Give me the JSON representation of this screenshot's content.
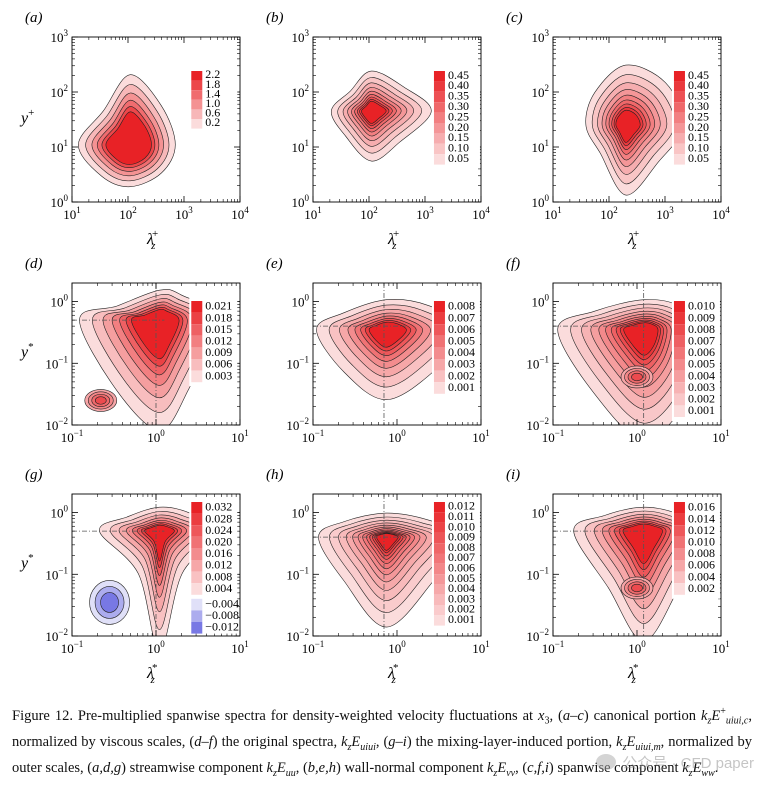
{
  "chart_data": [
    {
      "panel": "(a)",
      "type": "contour",
      "xscale": "log",
      "yscale": "log",
      "xlim": [
        10,
        10000
      ],
      "ylim": [
        1,
        1000
      ],
      "xticks": [
        {
          "v": 10,
          "b": "10",
          "e": "1"
        },
        {
          "v": 100,
          "b": "10",
          "e": "2"
        },
        {
          "v": 1000,
          "b": "10",
          "e": "3"
        },
        {
          "v": 10000,
          "b": "10",
          "e": "4"
        }
      ],
      "yticks": [
        {
          "v": 1,
          "b": "10",
          "e": "0"
        },
        {
          "v": 10,
          "b": "10",
          "e": "1"
        },
        {
          "v": 100,
          "b": "10",
          "e": "2"
        },
        {
          "v": 1000,
          "b": "10",
          "e": "3"
        }
      ],
      "ylabel": "y",
      "ylabel_sup": "+",
      "xlabel": "λ",
      "xlabel_sub": "z",
      "xlabel_sup": "+",
      "levels": [
        0.2,
        0.6,
        1.0,
        1.4,
        1.8,
        2.2
      ],
      "colorbar_labels": [
        "2.2",
        "1.8",
        "1.4",
        "1.0",
        "0.6",
        "0.2"
      ],
      "peak": {
        "x": 110,
        "y": 11
      },
      "guides": []
    },
    {
      "panel": "(b)",
      "type": "contour",
      "xscale": "log",
      "yscale": "log",
      "xlim": [
        10,
        10000
      ],
      "ylim": [
        1,
        1000
      ],
      "xticks": [
        {
          "v": 10,
          "b": "10",
          "e": "1"
        },
        {
          "v": 100,
          "b": "10",
          "e": "2"
        },
        {
          "v": 1000,
          "b": "10",
          "e": "3"
        },
        {
          "v": 10000,
          "b": "10",
          "e": "4"
        }
      ],
      "yticks": [
        {
          "v": 1,
          "b": "10",
          "e": "0"
        },
        {
          "v": 10,
          "b": "10",
          "e": "1"
        },
        {
          "v": 100,
          "b": "10",
          "e": "2"
        },
        {
          "v": 1000,
          "b": "10",
          "e": "3"
        }
      ],
      "ylabel": "",
      "ylabel_sup": "",
      "xlabel": "λ",
      "xlabel_sub": "z",
      "xlabel_sup": "+",
      "levels": [
        0.05,
        0.1,
        0.15,
        0.2,
        0.25,
        0.3,
        0.35,
        0.4,
        0.45
      ],
      "colorbar_labels": [
        "0.45",
        "0.40",
        "0.35",
        "0.30",
        "0.25",
        "0.20",
        "0.15",
        "0.10",
        "0.05"
      ],
      "peak": {
        "x": 110,
        "y": 45
      },
      "guides": []
    },
    {
      "panel": "(c)",
      "type": "contour",
      "xscale": "log",
      "yscale": "log",
      "xlim": [
        10,
        10000
      ],
      "ylim": [
        1,
        1000
      ],
      "xticks": [
        {
          "v": 10,
          "b": "10",
          "e": "1"
        },
        {
          "v": 100,
          "b": "10",
          "e": "2"
        },
        {
          "v": 1000,
          "b": "10",
          "e": "3"
        },
        {
          "v": 10000,
          "b": "10",
          "e": "4"
        }
      ],
      "yticks": [
        {
          "v": 1,
          "b": "10",
          "e": "0"
        },
        {
          "v": 10,
          "b": "10",
          "e": "1"
        },
        {
          "v": 100,
          "b": "10",
          "e": "2"
        },
        {
          "v": 1000,
          "b": "10",
          "e": "3"
        }
      ],
      "ylabel": "",
      "ylabel_sup": "",
      "xlabel": "λ",
      "xlabel_sub": "z",
      "xlabel_sup": "+",
      "levels": [
        0.05,
        0.1,
        0.15,
        0.2,
        0.25,
        0.3,
        0.35,
        0.4,
        0.45
      ],
      "colorbar_labels": [
        "0.45",
        "0.40",
        "0.35",
        "0.30",
        "0.25",
        "0.20",
        "0.15",
        "0.10",
        "0.05"
      ],
      "peak": {
        "x": 200,
        "y": 25
      },
      "guides": []
    },
    {
      "panel": "(d)",
      "type": "contour",
      "xscale": "log",
      "yscale": "log",
      "xlim": [
        0.1,
        10
      ],
      "ylim": [
        0.01,
        2
      ],
      "xticks": [
        {
          "v": 0.1,
          "b": "10",
          "e": "−1"
        },
        {
          "v": 1,
          "b": "10",
          "e": "0"
        },
        {
          "v": 10,
          "b": "10",
          "e": "1"
        }
      ],
      "yticks": [
        {
          "v": 0.01,
          "b": "10",
          "e": "−2"
        },
        {
          "v": 0.1,
          "b": "10",
          "e": "−1"
        },
        {
          "v": 1,
          "b": "10",
          "e": "0"
        }
      ],
      "ylabel": "y",
      "ylabel_sup": "*",
      "xlabel": "",
      "xlabel_sub": "",
      "xlabel_sup": "",
      "levels": [
        0.003,
        0.006,
        0.009,
        0.012,
        0.015,
        0.018,
        0.021
      ],
      "colorbar_labels": [
        "0.021",
        "0.018",
        "0.015",
        "0.012",
        "0.009",
        "0.006",
        "0.003"
      ],
      "peak": {
        "x": 1.1,
        "y": 0.5
      },
      "secondary": {
        "x": 0.22,
        "y": 0.025
      },
      "guides": [
        1,
        0.5
      ]
    },
    {
      "panel": "(e)",
      "type": "contour",
      "xscale": "log",
      "yscale": "log",
      "xlim": [
        0.1,
        10
      ],
      "ylim": [
        0.01,
        2
      ],
      "xticks": [
        {
          "v": 0.1,
          "b": "10",
          "e": "−1"
        },
        {
          "v": 1,
          "b": "10",
          "e": "0"
        },
        {
          "v": 10,
          "b": "10",
          "e": "1"
        }
      ],
      "yticks": [
        {
          "v": 0.01,
          "b": "10",
          "e": "−2"
        },
        {
          "v": 0.1,
          "b": "10",
          "e": "−1"
        },
        {
          "v": 1,
          "b": "10",
          "e": "0"
        }
      ],
      "ylabel": "",
      "ylabel_sup": "",
      "xlabel": "",
      "xlabel_sub": "",
      "xlabel_sup": "",
      "levels": [
        0.001,
        0.002,
        0.003,
        0.004,
        0.005,
        0.006,
        0.007,
        0.008
      ],
      "colorbar_labels": [
        "0.008",
        "0.007",
        "0.006",
        "0.005",
        "0.004",
        "0.003",
        "0.002",
        "0.001"
      ],
      "peak": {
        "x": 0.75,
        "y": 0.35
      },
      "guides": [
        0.7,
        0.4
      ]
    },
    {
      "panel": "(f)",
      "type": "contour",
      "xscale": "log",
      "yscale": "log",
      "xlim": [
        0.1,
        10
      ],
      "ylim": [
        0.01,
        2
      ],
      "xticks": [
        {
          "v": 0.1,
          "b": "10",
          "e": "−1"
        },
        {
          "v": 1,
          "b": "10",
          "e": "0"
        },
        {
          "v": 10,
          "b": "10",
          "e": "1"
        }
      ],
      "yticks": [
        {
          "v": 0.01,
          "b": "10",
          "e": "−2"
        },
        {
          "v": 0.1,
          "b": "10",
          "e": "−1"
        },
        {
          "v": 1,
          "b": "10",
          "e": "0"
        }
      ],
      "ylabel": "",
      "ylabel_sup": "",
      "xlabel": "",
      "xlabel_sub": "",
      "xlabel_sup": "",
      "levels": [
        0.001,
        0.002,
        0.003,
        0.004,
        0.005,
        0.006,
        0.007,
        0.008,
        0.009,
        0.01
      ],
      "colorbar_labels": [
        "0.010",
        "0.009",
        "0.008",
        "0.007",
        "0.006",
        "0.005",
        "0.004",
        "0.003",
        "0.002",
        "0.001"
      ],
      "peak": {
        "x": 1.2,
        "y": 0.35
      },
      "secondary": {
        "x": 1.0,
        "y": 0.06
      },
      "guides": [
        1.2,
        0.4
      ]
    },
    {
      "panel": "(g)",
      "type": "contour",
      "xscale": "log",
      "yscale": "log",
      "xlim": [
        0.1,
        10
      ],
      "ylim": [
        0.01,
        2
      ],
      "xticks": [
        {
          "v": 0.1,
          "b": "10",
          "e": "−1"
        },
        {
          "v": 1,
          "b": "10",
          "e": "0"
        },
        {
          "v": 10,
          "b": "10",
          "e": "1"
        }
      ],
      "yticks": [
        {
          "v": 0.01,
          "b": "10",
          "e": "−2"
        },
        {
          "v": 0.1,
          "b": "10",
          "e": "−1"
        },
        {
          "v": 1,
          "b": "10",
          "e": "0"
        }
      ],
      "ylabel": "y",
      "ylabel_sup": "*",
      "xlabel": "λ",
      "xlabel_sub": "z",
      "xlabel_sup": "*",
      "levels": [
        0.004,
        0.008,
        0.012,
        0.016,
        0.02,
        0.024,
        0.028,
        0.032
      ],
      "negative_levels": [
        -0.004,
        -0.008,
        -0.012
      ],
      "colorbar_labels": [
        "0.032",
        "0.028",
        "0.024",
        "0.020",
        "0.016",
        "0.012",
        "0.008",
        "0.004"
      ],
      "colorbar_neg_labels": [
        "−0.004",
        "−0.008",
        "−0.012"
      ],
      "peak": {
        "x": 1.1,
        "y": 0.5
      },
      "negative_peak": {
        "x": 0.28,
        "y": 0.035
      },
      "guides": [
        1,
        0.5
      ]
    },
    {
      "panel": "(h)",
      "type": "contour",
      "xscale": "log",
      "yscale": "log",
      "xlim": [
        0.1,
        10
      ],
      "ylim": [
        0.01,
        2
      ],
      "xticks": [
        {
          "v": 0.1,
          "b": "10",
          "e": "−1"
        },
        {
          "v": 1,
          "b": "10",
          "e": "0"
        },
        {
          "v": 10,
          "b": "10",
          "e": "1"
        }
      ],
      "yticks": [
        {
          "v": 0.01,
          "b": "10",
          "e": "−2"
        },
        {
          "v": 0.1,
          "b": "10",
          "e": "−1"
        },
        {
          "v": 1,
          "b": "10",
          "e": "0"
        }
      ],
      "ylabel": "",
      "ylabel_sup": "",
      "xlabel": "λ",
      "xlabel_sub": "z",
      "xlabel_sup": "*",
      "levels": [
        0.001,
        0.002,
        0.003,
        0.004,
        0.005,
        0.006,
        0.007,
        0.008,
        0.009,
        0.01,
        0.011,
        0.012
      ],
      "colorbar_labels": [
        "0.012",
        "0.011",
        "0.010",
        "0.009",
        "0.008",
        "0.007",
        "0.006",
        "0.005",
        "0.004",
        "0.003",
        "0.002",
        "0.001"
      ],
      "peak": {
        "x": 0.75,
        "y": 0.4
      },
      "guides": [
        0.7,
        0.4
      ]
    },
    {
      "panel": "(i)",
      "type": "contour",
      "xscale": "log",
      "yscale": "log",
      "xlim": [
        0.1,
        10
      ],
      "ylim": [
        0.01,
        2
      ],
      "xticks": [
        {
          "v": 0.1,
          "b": "10",
          "e": "−1"
        },
        {
          "v": 1,
          "b": "10",
          "e": "0"
        },
        {
          "v": 10,
          "b": "10",
          "e": "1"
        }
      ],
      "yticks": [
        {
          "v": 0.01,
          "b": "10",
          "e": "−2"
        },
        {
          "v": 0.1,
          "b": "10",
          "e": "−1"
        },
        {
          "v": 1,
          "b": "10",
          "e": "0"
        }
      ],
      "ylabel": "",
      "ylabel_sup": "",
      "xlabel": "λ",
      "xlabel_sub": "z",
      "xlabel_sup": "*",
      "levels": [
        0.002,
        0.004,
        0.006,
        0.008,
        0.01,
        0.012,
        0.014,
        0.016
      ],
      "colorbar_labels": [
        "0.016",
        "0.014",
        "0.012",
        "0.010",
        "0.008",
        "0.006",
        "0.004",
        "0.002"
      ],
      "peak": {
        "x": 1.2,
        "y": 0.5
      },
      "secondary": {
        "x": 1.0,
        "y": 0.06
      },
      "guides": [
        1.2,
        0.5
      ]
    }
  ],
  "caption": {
    "s1": "Figure  12.  Pre-multiplied spanwise spectra for density-weighted velocity fluctuations at ",
    "x3": "x",
    "x3_sub": "3",
    "s2": ", (",
    "ac": "a–c",
    "s3": ") canonical portion ",
    "kz1": "k",
    "kz1_sub": "z",
    "E1": "E",
    "E1_sup": "+",
    "E1_sub": "u",
    "E1_sub2": "i",
    "E1_sub3": "u",
    "E1_sub4": "i",
    "E1_sub5": ",c",
    "s4": ", normalized by viscous scales, (",
    "df": "d–f",
    "s5": ") the original spectra, ",
    "kz2": "k",
    "kz2_sub": "z",
    "E2": "E",
    "E2_sub": "u",
    "E2_sub2": "i",
    "E2_sub3": "u",
    "E2_sub4": "i",
    "s6": ", (",
    "gi": "g–i",
    "s7": ") the mixing-layer-induced portion, ",
    "kz3": "k",
    "kz3_sub": "z",
    "E3": "E",
    "E3_sub": "u",
    "E3_sub2": "i",
    "E3_sub3": "u",
    "E3_sub4": "i",
    "E3_sub5": ",m",
    "s8": ", normalized by outer scales, (",
    "adg": "a,d,g",
    "s9": ") streamwise component ",
    "kz4": "k",
    "kz4_sub": "z",
    "E4": "E",
    "E4_sub": "uu",
    "s10": ", (",
    "beh": "b,e,h",
    "s11": ") wall-normal component ",
    "kz5": "k",
    "kz5_sub": "z",
    "E5": "E",
    "E5_sub": "vv",
    "s12": ", (",
    "cfi": "c,f,i",
    "s13": ") spanwise component ",
    "kz6": "k",
    "kz6_sub": "z",
    "E6": "E",
    "E6_sub": "ww",
    "s14": "."
  },
  "watermark": "公众号 · CFD paper"
}
